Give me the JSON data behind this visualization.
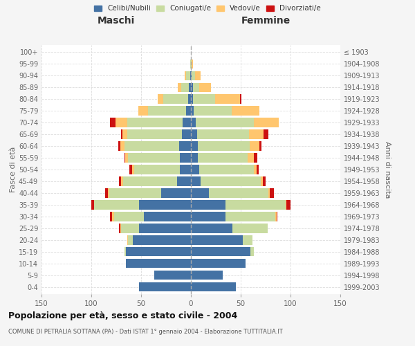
{
  "age_groups": [
    "0-4",
    "5-9",
    "10-14",
    "15-19",
    "20-24",
    "25-29",
    "30-34",
    "35-39",
    "40-44",
    "45-49",
    "50-54",
    "55-59",
    "60-64",
    "65-69",
    "70-74",
    "75-79",
    "80-84",
    "85-89",
    "90-94",
    "95-99",
    "100+"
  ],
  "birth_years": [
    "1999-2003",
    "1994-1998",
    "1989-1993",
    "1984-1988",
    "1979-1983",
    "1974-1978",
    "1969-1973",
    "1964-1968",
    "1959-1963",
    "1954-1958",
    "1949-1953",
    "1944-1948",
    "1939-1943",
    "1934-1938",
    "1929-1933",
    "1924-1928",
    "1919-1923",
    "1914-1918",
    "1909-1913",
    "1904-1908",
    "≤ 1903"
  ],
  "male": {
    "celibi": [
      52,
      37,
      65,
      65,
      58,
      52,
      47,
      52,
      30,
      14,
      11,
      11,
      12,
      9,
      8,
      5,
      3,
      2,
      1,
      0,
      0
    ],
    "coniugati": [
      0,
      0,
      0,
      2,
      5,
      18,
      30,
      45,
      52,
      54,
      46,
      52,
      55,
      55,
      56,
      38,
      25,
      8,
      4,
      1,
      0
    ],
    "vedovi": [
      0,
      0,
      0,
      0,
      1,
      1,
      2,
      0,
      1,
      2,
      2,
      3,
      4,
      5,
      12,
      10,
      5,
      3,
      1,
      0,
      0
    ],
    "divorziati": [
      0,
      0,
      0,
      0,
      0,
      1,
      2,
      3,
      3,
      2,
      3,
      1,
      2,
      1,
      5,
      0,
      0,
      0,
      0,
      0,
      0
    ]
  },
  "female": {
    "nubili": [
      45,
      32,
      55,
      60,
      52,
      42,
      35,
      35,
      18,
      10,
      8,
      7,
      7,
      6,
      5,
      3,
      2,
      2,
      1,
      0,
      0
    ],
    "coniugate": [
      0,
      0,
      0,
      3,
      10,
      35,
      50,
      60,
      60,
      60,
      55,
      50,
      52,
      52,
      58,
      38,
      22,
      6,
      3,
      1,
      0
    ],
    "vedove": [
      0,
      0,
      0,
      0,
      0,
      0,
      1,
      1,
      1,
      2,
      3,
      6,
      10,
      15,
      25,
      28,
      25,
      12,
      6,
      1,
      0
    ],
    "divorziate": [
      0,
      0,
      0,
      0,
      0,
      0,
      1,
      4,
      4,
      3,
      2,
      4,
      2,
      5,
      0,
      0,
      2,
      0,
      0,
      0,
      0
    ]
  },
  "colors": {
    "celibi": "#4472a4",
    "coniugati": "#c8dba0",
    "vedovi": "#ffc66e",
    "divorziati": "#cc1111"
  },
  "title": "Popolazione per età, sesso e stato civile - 2004",
  "subtitle": "COMUNE DI PETRALIA SOTTANA (PA) - Dati ISTAT 1° gennaio 2004 - Elaborazione TUTTITALIA.IT",
  "xlabel_left": "Maschi",
  "xlabel_right": "Femmine",
  "ylabel_left": "Fasce di età",
  "ylabel_right": "Anni di nascita",
  "xlim": 150,
  "bg_color": "#f5f5f5",
  "plot_bg": "#ffffff",
  "legend_labels": [
    "Celibi/Nubili",
    "Coniugati/e",
    "Vedovi/e",
    "Divorziati/e"
  ]
}
